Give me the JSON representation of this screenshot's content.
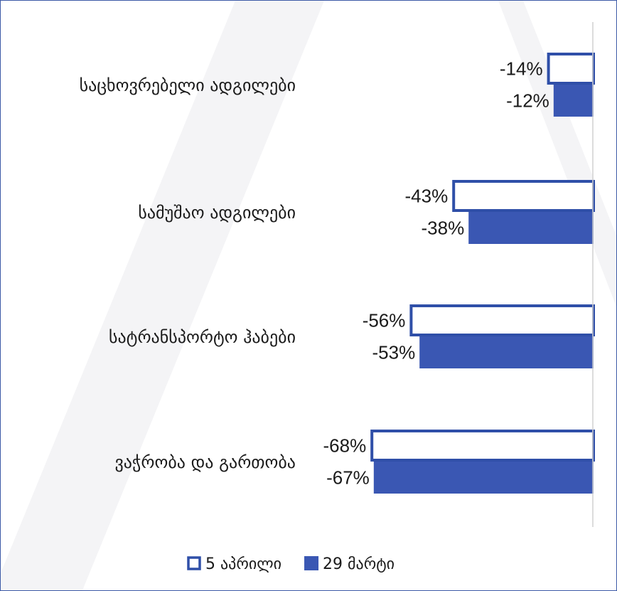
{
  "chart_data": {
    "type": "bar",
    "orientation": "horizontal",
    "categories": [
      "საცხოვრებელი ადგილები",
      "სამუშაო ადგილები",
      "სატრანსპორტო ჰაბები",
      "ვაჭრობა და გართობა"
    ],
    "series": [
      {
        "name": "5 აპრილი",
        "values": [
          -14,
          -43,
          -56,
          -68
        ],
        "labels": [
          "-14%",
          "-43%",
          "-56%",
          "-68%"
        ],
        "style": "outline",
        "color": "#2f4fa8"
      },
      {
        "name": "29 მარტი",
        "values": [
          -12,
          -38,
          -53,
          -67
        ],
        "labels": [
          "-12%",
          "-38%",
          "-53%",
          "-67%"
        ],
        "style": "filled",
        "color": "#3a57b3"
      }
    ],
    "xlim": [
      -100,
      0
    ],
    "legend": "bottom",
    "grid": false,
    "value_unit": "%"
  }
}
